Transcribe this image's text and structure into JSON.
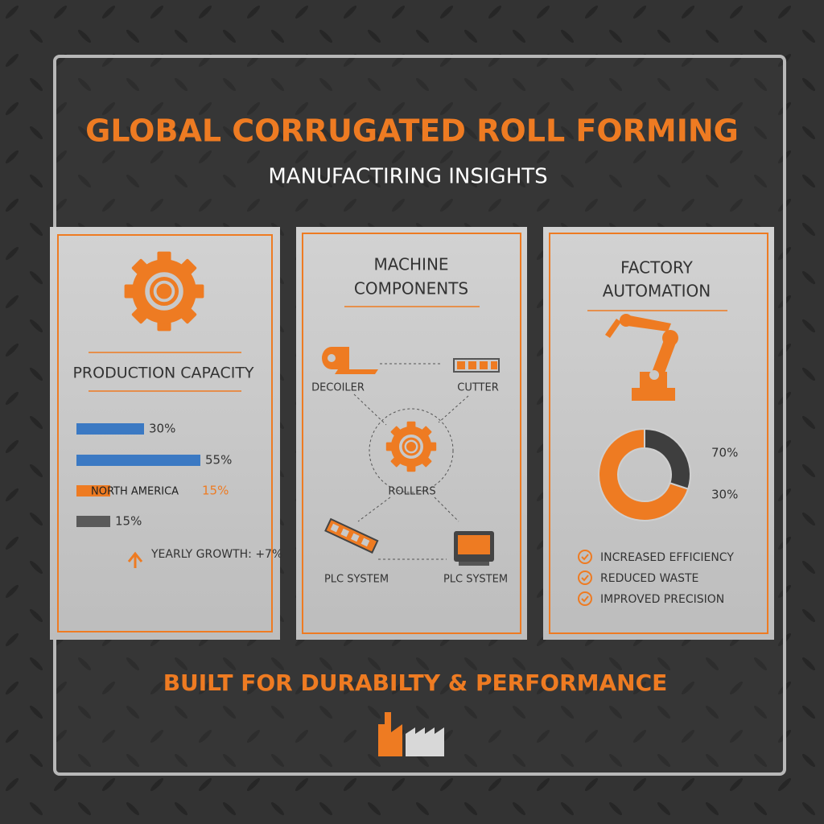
{
  "header": {
    "title": "GLOBAL CORRUGATED ROLL FORMING",
    "subtitle": "MANUFACTIRING INSIGHTS"
  },
  "production": {
    "title": "PRODUCTION CAPACITY",
    "note": "YEARLY GROWTH: +7%"
  },
  "components": {
    "title_lines": [
      "MACHINE",
      "COMPONENTS"
    ],
    "nodes": [
      {
        "label": "DECOILER"
      },
      {
        "label": "CUTTER"
      },
      {
        "label": "ROLLERS"
      },
      {
        "label": "PLC SYSTEM"
      },
      {
        "label": "PLC SYSTEM"
      }
    ]
  },
  "automation": {
    "title_lines": [
      "FACTORY",
      "AUTOMATION"
    ],
    "benefits": [
      "INCREASED EFFICIENCY",
      "REDUCED WASTE",
      "IMPROVED PRECISION"
    ]
  },
  "footer": {
    "tagline": "BUILT FOR DURABILTY & PERFORMANCE"
  },
  "chart_data": [
    {
      "type": "bar",
      "orientation": "horizontal",
      "categories": [
        null,
        null,
        "NORTH AMERICA",
        null
      ],
      "values": [
        30,
        55,
        15,
        15
      ],
      "value_labels": [
        "30%",
        "55%",
        "15%",
        "15%"
      ],
      "colors": [
        "#3b79c3",
        "#3b79c3",
        "#ee7b22",
        "#5a5a5a"
      ]
    },
    {
      "type": "donut",
      "values": [
        70,
        30
      ],
      "value_labels": [
        "70%",
        "30%"
      ],
      "colors": [
        "#ee7b22",
        "#3e3e3e"
      ]
    }
  ]
}
